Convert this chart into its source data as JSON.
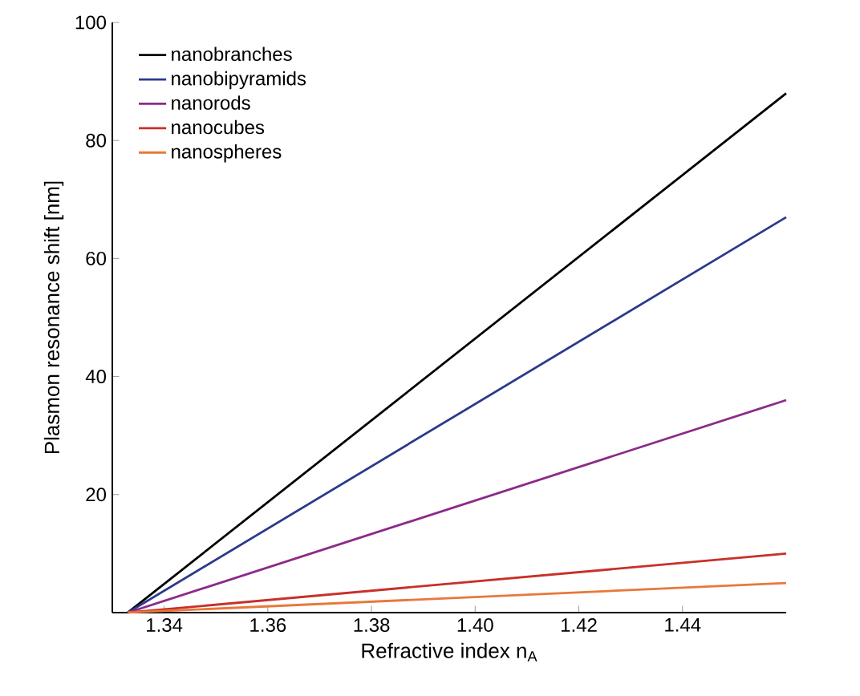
{
  "chart_data": {
    "type": "line",
    "xlabel": "Refractive index n$_{A}$",
    "ylabel": "Plasmon resonance shift [nm]",
    "xlim": [
      1.33,
      1.46
    ],
    "ylim": [
      0,
      100
    ],
    "xticks": [
      1.34,
      1.36,
      1.38,
      {
        "value": 1.4,
        "label": "1.40"
      },
      1.42,
      1.44
    ],
    "yticks": [
      20,
      40,
      60,
      80,
      100
    ],
    "legend": "top left",
    "grid": false,
    "x": [
      1.333,
      1.46
    ],
    "series": [
      {
        "name": "nanobranches",
        "color": "#000000",
        "values": [
          0,
          88
        ]
      },
      {
        "name": "nanobipyramids",
        "color": "#2b3a8c",
        "values": [
          0,
          67
        ]
      },
      {
        "name": "nanorods",
        "color": "#8c2a8a",
        "values": [
          0,
          36
        ]
      },
      {
        "name": "nanocubes",
        "color": "#c8302a",
        "values": [
          0,
          10
        ]
      },
      {
        "name": "nanospheres",
        "color": "#e8783a",
        "values": [
          0,
          5
        ]
      }
    ]
  }
}
